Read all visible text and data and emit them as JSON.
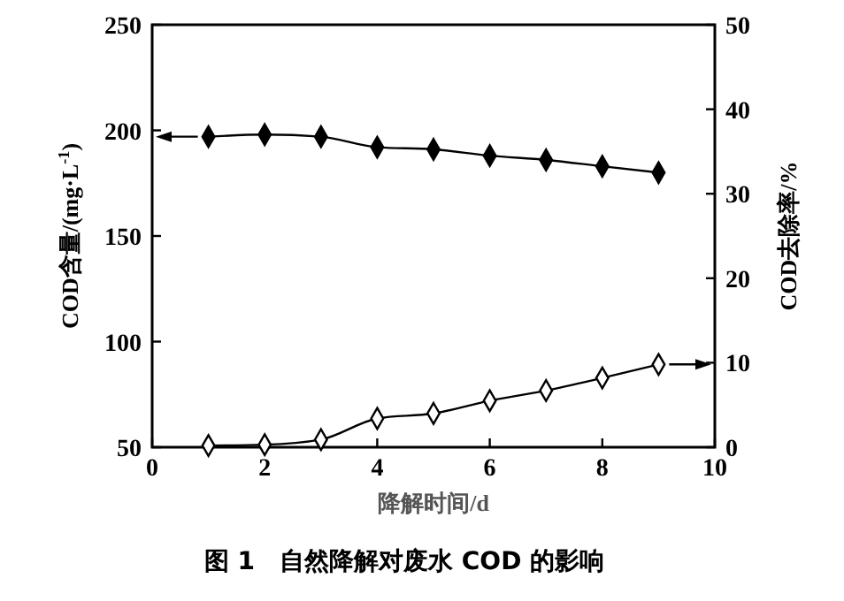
{
  "chart_data": {
    "type": "line",
    "xlabel": "降解时间/d",
    "ylabel": "COD含量/(mg·L$^{-1}$)",
    "y2label": "COD去除率/%",
    "x": [
      1,
      2,
      3,
      4,
      5,
      6,
      7,
      8,
      9
    ],
    "series": [
      {
        "color": "#000000",
        "values": [
          197,
          198,
          197,
          192,
          191,
          188,
          186,
          183,
          180
        ]
      },
      {
        "color": "#000000",
        "axis": "y2",
        "values": [
          0.2,
          0.3,
          0.9,
          3.4,
          4.0,
          5.5,
          6.7,
          8.2,
          9.8
        ]
      }
    ],
    "xlim": [
      0,
      10
    ],
    "xticks": [
      0,
      2,
      4,
      6,
      8,
      10
    ],
    "ylim": [
      50,
      250
    ],
    "yticks": [
      50,
      100,
      150,
      200,
      250
    ],
    "y2lim": [
      0,
      50
    ],
    "y2ticks": [
      0,
      10,
      20,
      30,
      40,
      50
    ],
    "marker": "diamond",
    "line_style": "solid",
    "grid": false,
    "annotations": [
      "图 1　自然降解对废水 COD 的影响"
    ]
  }
}
